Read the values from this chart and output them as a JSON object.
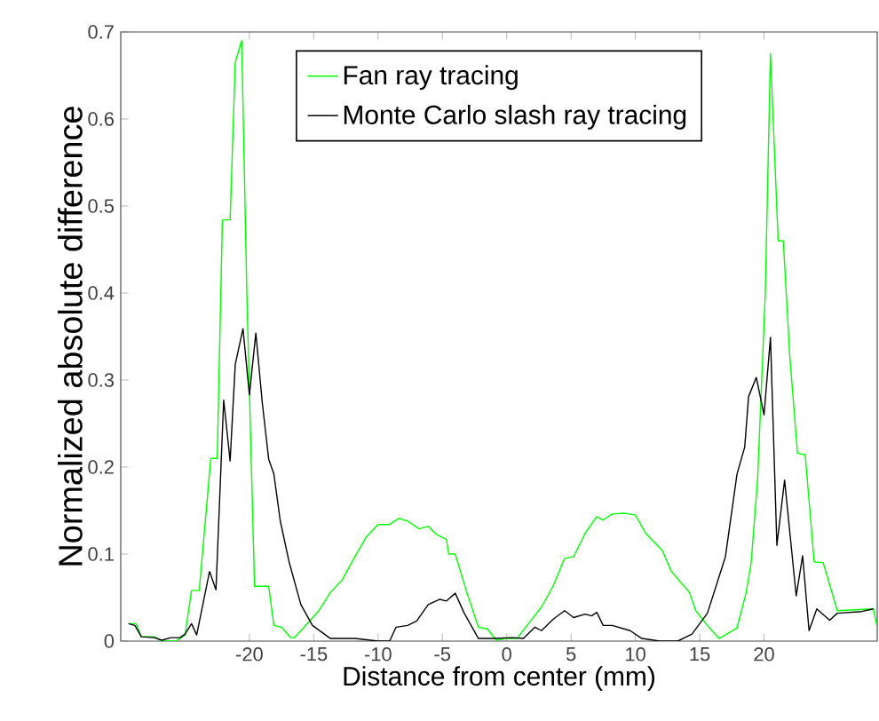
{
  "chart_data": {
    "type": "line",
    "xlabel": "Distance from center (mm)",
    "ylabel": "Normalized absolute difference",
    "xlim": [
      -30,
      28.8
    ],
    "ylim": [
      0,
      0.7
    ],
    "xticks": [
      -20,
      -15,
      -10,
      -5,
      0,
      5,
      10,
      15,
      20
    ],
    "yticks": [
      0,
      0.1,
      0.2,
      0.3,
      0.4,
      0.5,
      0.6,
      0.7
    ],
    "legend": "top",
    "grid": false,
    "marker": "none",
    "line_style": "solid",
    "series": [
      {
        "name": "Fan ray tracing",
        "color": "#00ff00",
        "x": [
          -29.4,
          -28.8,
          -28.4,
          -27.4,
          -26.8,
          -25.7,
          -25,
          -24.5,
          -23.9,
          -23.0,
          -22.5,
          -22.1,
          -21.5,
          -21.1,
          -20.6,
          -20.2,
          -19.6,
          -18.5,
          -18.1,
          -17.5,
          -16.8,
          -16.5,
          -15.8,
          -14.6,
          -13.7,
          -12.8,
          -11.8,
          -10.9,
          -10,
          -9.1,
          -8.4,
          -7.7,
          -6.8,
          -6.1,
          -5.4,
          -4.7,
          -4.5,
          -4.0,
          -3.1,
          -2.2,
          -1.5,
          -0.8,
          -0.1,
          0.8,
          1.8,
          2.7,
          3.6,
          4.5,
          5.2,
          6.1,
          7.0,
          7.5,
          8.2,
          9.1,
          10.0,
          10.8,
          12.1,
          12.8,
          14.2,
          14.7,
          15.6,
          16.5,
          17.9,
          18.6,
          19.0,
          19.5,
          20.1,
          20.5,
          21.1,
          21.5,
          22.0,
          22.6,
          23.2,
          23.9,
          24.6,
          25.7,
          28.5,
          28.8
        ],
        "values": [
          0.02,
          0.02,
          0.005,
          0.005,
          0,
          0,
          0.007,
          0.058,
          0.058,
          0.21,
          0.21,
          0.484,
          0.484,
          0.665,
          0.69,
          0.4,
          0.063,
          0.063,
          0.018,
          0.016,
          0.004,
          0.004,
          0.015,
          0.035,
          0.056,
          0.07,
          0.097,
          0.12,
          0.134,
          0.134,
          0.141,
          0.138,
          0.129,
          0.132,
          0.122,
          0.117,
          0.1,
          0.1,
          0.056,
          0.016,
          0.014,
          0.001,
          0.003,
          0.003,
          0.022,
          0.039,
          0.063,
          0.095,
          0.097,
          0.124,
          0.143,
          0.139,
          0.146,
          0.147,
          0.145,
          0.124,
          0.104,
          0.08,
          0.056,
          0.035,
          0.018,
          0.003,
          0.015,
          0.055,
          0.09,
          0.185,
          0.4,
          0.675,
          0.46,
          0.46,
          0.328,
          0.216,
          0.214,
          0.091,
          0.09,
          0.035,
          0.037,
          0.016
        ]
      },
      {
        "name": "Monte Carlo slash ray tracing",
        "color": "#000000",
        "x": [
          -29.4,
          -28.9,
          -28.4,
          -27.4,
          -26.8,
          -26.1,
          -25.4,
          -25,
          -24.5,
          -24.1,
          -23.1,
          -22.6,
          -22.0,
          -21.5,
          -21.1,
          -20.5,
          -20.0,
          -19.5,
          -19.0,
          -18.5,
          -18.1,
          -17.6,
          -16.9,
          -16.0,
          -15.1,
          -13.7,
          -11.8,
          -10,
          -9.1,
          -8.6,
          -7.7,
          -7.0,
          -6.1,
          -5.2,
          -4.7,
          -4.0,
          -3.3,
          -2.2,
          -1.0,
          0.4,
          1.3,
          2.2,
          2.7,
          3.6,
          4.5,
          5.2,
          6.1,
          6.6,
          7.0,
          7.5,
          8.2,
          9.6,
          10.5,
          11.9,
          13.3,
          14.4,
          15.6,
          17.0,
          17.9,
          18.5,
          18.8,
          19.4,
          20.0,
          20.5,
          21.0,
          21.6,
          22.5,
          23.0,
          23.5,
          24.1,
          25.1,
          25.7,
          27.6,
          28.5
        ],
        "values": [
          0.02,
          0.018,
          0.005,
          0.004,
          0.001,
          0.004,
          0.004,
          0.008,
          0.02,
          0.007,
          0.08,
          0.059,
          0.277,
          0.207,
          0.318,
          0.359,
          0.283,
          0.354,
          0.274,
          0.209,
          0.192,
          0.138,
          0.09,
          0.042,
          0.018,
          0.003,
          0.003,
          0,
          0,
          0.016,
          0.018,
          0.023,
          0.042,
          0.048,
          0.046,
          0.055,
          0.032,
          0.003,
          0.003,
          0.004,
          0.003,
          0.016,
          0.012,
          0.025,
          0.035,
          0.027,
          0.031,
          0.029,
          0.033,
          0.018,
          0.018,
          0.012,
          0.003,
          0,
          0,
          0.008,
          0.032,
          0.097,
          0.192,
          0.223,
          0.281,
          0.303,
          0.26,
          0.349,
          0.11,
          0.185,
          0.052,
          0.098,
          0.012,
          0.037,
          0.024,
          0.032,
          0.034,
          0.037
        ]
      }
    ]
  }
}
